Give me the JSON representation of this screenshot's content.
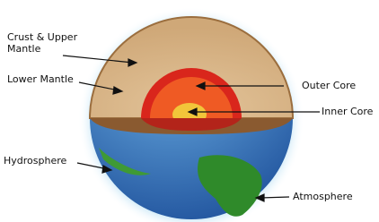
{
  "labels": [
    {
      "text": "Crust & Upper Mantle"
    },
    {
      "text": "Lower Mantle"
    },
    {
      "text": "Outer Core"
    },
    {
      "text": "Inner Core"
    },
    {
      "text": "Hydrosphere"
    },
    {
      "text": "Atmosphere"
    }
  ]
}
